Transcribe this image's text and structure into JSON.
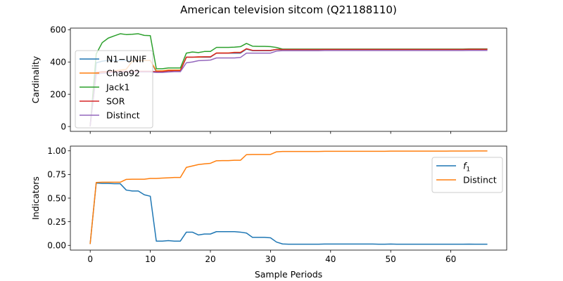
{
  "title": "American television sitcom (Q21188110)",
  "chart_data": [
    {
      "type": "line",
      "ylabel": "Cardinality",
      "xlabel": "",
      "xlim": [
        -3.3,
        69.3
      ],
      "ylim": [
        -30,
        610
      ],
      "xticks": [
        0,
        10,
        20,
        30,
        40,
        50,
        60
      ],
      "yticks": [
        0,
        200,
        400,
        600
      ],
      "xtick_labels_visible": false,
      "legend": "upper-left",
      "x": [
        0,
        1,
        2,
        3,
        4,
        5,
        6,
        7,
        8,
        9,
        10,
        11,
        12,
        13,
        14,
        15,
        16,
        17,
        18,
        19,
        20,
        21,
        22,
        23,
        24,
        25,
        26,
        27,
        28,
        29,
        30,
        31,
        32,
        33,
        34,
        35,
        36,
        37,
        38,
        39,
        40,
        41,
        42,
        43,
        44,
        45,
        46,
        47,
        48,
        49,
        50,
        51,
        52,
        53,
        54,
        55,
        56,
        57,
        58,
        59,
        60,
        61,
        62,
        63,
        64,
        65,
        66
      ],
      "series": [
        {
          "name": "N1−UNIF",
          "color": "#1f77b4",
          "values": [
            5,
            395,
            405,
            410,
            410,
            410,
            410,
            410,
            410,
            410,
            410,
            340,
            340,
            345,
            345,
            345,
            430,
            430,
            430,
            430,
            430,
            455,
            455,
            455,
            455,
            455,
            480,
            470,
            470,
            470,
            470,
            478,
            477,
            477,
            477,
            477,
            477,
            477,
            477,
            478,
            478,
            478,
            478,
            478,
            478,
            478,
            478,
            478,
            478,
            478,
            478,
            478,
            478,
            478,
            478,
            478,
            478,
            478,
            478,
            478,
            478,
            478,
            478,
            479,
            479,
            479,
            479
          ]
        },
        {
          "name": "Chao92",
          "color": "#ff7f0e",
          "values": [
            5,
            330,
            335,
            340,
            345,
            350,
            355,
            405,
            410,
            410,
            410,
            345,
            345,
            350,
            350,
            350,
            430,
            430,
            430,
            432,
            432,
            456,
            456,
            456,
            460,
            460,
            482,
            472,
            472,
            472,
            472,
            478,
            478,
            478,
            478,
            478,
            478,
            478,
            478,
            478,
            478,
            478,
            478,
            478,
            478,
            478,
            478,
            478,
            478,
            478,
            478,
            478,
            478,
            478,
            478,
            478,
            478,
            478,
            478,
            478,
            478,
            478,
            478,
            479,
            479,
            479,
            479
          ]
        },
        {
          "name": "Jack1",
          "color": "#2ca02c",
          "values": [
            5,
            450,
            520,
            548,
            562,
            575,
            570,
            572,
            575,
            565,
            563,
            358,
            358,
            363,
            363,
            363,
            455,
            462,
            458,
            465,
            465,
            490,
            490,
            490,
            492,
            495,
            515,
            498,
            497,
            497,
            495,
            490,
            480,
            480,
            480,
            480,
            480,
            480,
            480,
            480,
            480,
            480,
            480,
            480,
            480,
            480,
            480,
            480,
            480,
            480,
            480,
            480,
            480,
            480,
            480,
            480,
            480,
            480,
            480,
            480,
            480,
            480,
            480,
            481,
            481,
            481,
            481
          ]
        },
        {
          "name": "SOR",
          "color": "#d62728",
          "values": [
            5,
            335,
            340,
            340,
            342,
            342,
            342,
            342,
            342,
            342,
            342,
            340,
            340,
            345,
            345,
            345,
            430,
            430,
            432,
            432,
            432,
            455,
            455,
            455,
            458,
            458,
            482,
            472,
            472,
            472,
            472,
            478,
            477,
            477,
            477,
            477,
            477,
            477,
            477,
            478,
            478,
            478,
            478,
            478,
            478,
            478,
            478,
            478,
            478,
            478,
            478,
            478,
            478,
            478,
            478,
            478,
            478,
            478,
            478,
            478,
            478,
            478,
            478,
            479,
            479,
            479,
            479
          ]
        },
        {
          "name": "Distinct",
          "color": "#9467bd",
          "values": [
            5,
            325,
            330,
            332,
            335,
            336,
            338,
            338,
            338,
            338,
            338,
            335,
            335,
            338,
            340,
            340,
            395,
            400,
            408,
            410,
            412,
            425,
            425,
            425,
            425,
            428,
            455,
            455,
            455,
            455,
            455,
            468,
            470,
            470,
            470,
            470,
            470,
            470,
            470,
            471,
            471,
            471,
            471,
            471,
            471,
            471,
            471,
            471,
            471,
            471,
            471,
            471,
            471,
            471,
            471,
            471,
            471,
            471,
            471,
            471,
            471,
            471,
            471,
            472,
            472,
            472,
            472
          ]
        }
      ]
    },
    {
      "type": "line",
      "ylabel": "Indicators",
      "xlabel": "Sample Periods",
      "xlim": [
        -3.3,
        69.3
      ],
      "ylim": [
        -0.05,
        1.05
      ],
      "xticks": [
        0,
        10,
        20,
        30,
        40,
        50,
        60
      ],
      "yticks": [
        0.0,
        0.25,
        0.5,
        0.75,
        1.0
      ],
      "ytick_labels": [
        "0.00",
        "0.25",
        "0.50",
        "0.75",
        "1.00"
      ],
      "legend": "upper-right",
      "x": [
        0,
        1,
        2,
        3,
        4,
        5,
        6,
        7,
        8,
        9,
        10,
        11,
        12,
        13,
        14,
        15,
        16,
        17,
        18,
        19,
        20,
        21,
        22,
        23,
        24,
        25,
        26,
        27,
        28,
        29,
        30,
        31,
        32,
        33,
        34,
        35,
        36,
        37,
        38,
        39,
        40,
        41,
        42,
        43,
        44,
        45,
        46,
        47,
        48,
        49,
        50,
        51,
        52,
        53,
        54,
        55,
        56,
        57,
        58,
        59,
        60,
        61,
        62,
        63,
        64,
        65,
        66
      ],
      "series": [
        {
          "name": "f1",
          "name_base": "f",
          "name_sub": "1",
          "color": "#1f77b4",
          "values": [
            0.02,
            0.66,
            0.655,
            0.655,
            0.652,
            0.652,
            0.585,
            0.575,
            0.575,
            0.535,
            0.52,
            0.045,
            0.045,
            0.05,
            0.045,
            0.045,
            0.14,
            0.14,
            0.11,
            0.12,
            0.12,
            0.145,
            0.145,
            0.145,
            0.145,
            0.14,
            0.13,
            0.085,
            0.085,
            0.085,
            0.08,
            0.035,
            0.015,
            0.012,
            0.012,
            0.012,
            0.012,
            0.012,
            0.012,
            0.014,
            0.014,
            0.014,
            0.014,
            0.014,
            0.014,
            0.014,
            0.014,
            0.014,
            0.012,
            0.012,
            0.014,
            0.012,
            0.012,
            0.012,
            0.012,
            0.012,
            0.012,
            0.012,
            0.012,
            0.012,
            0.012,
            0.012,
            0.012,
            0.013,
            0.012,
            0.012,
            0.012
          ]
        },
        {
          "name": "Distinct",
          "color": "#ff7f0e",
          "values": [
            0.02,
            0.665,
            0.668,
            0.668,
            0.668,
            0.668,
            0.698,
            0.7,
            0.7,
            0.7,
            0.708,
            0.708,
            0.712,
            0.715,
            0.718,
            0.718,
            0.825,
            0.84,
            0.855,
            0.862,
            0.868,
            0.895,
            0.897,
            0.897,
            0.9,
            0.9,
            0.96,
            0.962,
            0.962,
            0.962,
            0.962,
            0.99,
            0.993,
            0.993,
            0.993,
            0.993,
            0.993,
            0.993,
            0.993,
            0.995,
            0.995,
            0.995,
            0.995,
            0.995,
            0.995,
            0.995,
            0.995,
            0.995,
            0.995,
            0.995,
            0.997,
            0.997,
            0.997,
            0.997,
            0.997,
            0.997,
            0.997,
            0.997,
            0.997,
            0.997,
            0.998,
            0.998,
            0.998,
            0.998,
            0.999,
            0.999,
            0.999
          ]
        }
      ]
    }
  ]
}
